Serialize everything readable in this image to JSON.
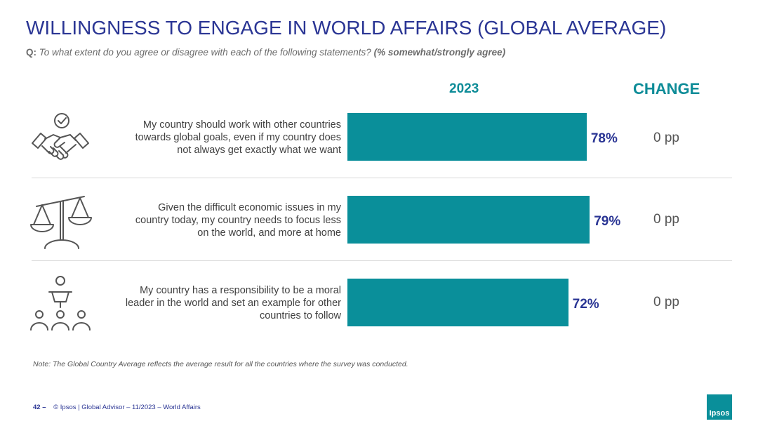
{
  "header": {
    "title": "WILLINGNESS TO ENGAGE IN WORLD AFFAIRS (GLOBAL AVERAGE)",
    "q_prefix": "Q:",
    "q_text": "To what extent do you agree or disagree with each of the following statements?",
    "q_emph": "(% somewhat/strongly agree)"
  },
  "columns": {
    "year": "2023",
    "change": "CHANGE"
  },
  "chart_data": {
    "type": "bar",
    "orientation": "horizontal",
    "categories": [
      "My country should work with other countries towards global goals, even if my country does not always get exactly what we want",
      "Given the difficult economic issues in my country today, my country needs to focus less on the world, and more at home",
      "My country has a responsibility to be a moral leader in the world and set an example for other countries to follow"
    ],
    "series": [
      {
        "name": "2023",
        "values": [
          78,
          79,
          72
        ]
      }
    ],
    "value_labels": [
      "78%",
      "79%",
      "72%"
    ],
    "change_labels": [
      "0 pp",
      "0 pp",
      "0 pp"
    ],
    "bar_color": "#0a8f9a",
    "xlim": [
      0,
      100
    ]
  },
  "rows": [
    {
      "label_lines": [
        "My country should work with other countries",
        "towards global goals, even if my country does",
        "not always get exactly what we want"
      ],
      "icon": "handshake-icon"
    },
    {
      "label_lines": [
        "Given the difficult economic issues in my",
        "country today, my country needs to focus less",
        "on the world, and more at home"
      ],
      "icon": "scales-icon"
    },
    {
      "label_lines": [
        "My country has a responsibility to be a moral",
        "leader in the world and set an example for other",
        "countries to follow"
      ],
      "icon": "leader-podium-icon"
    }
  ],
  "note": "Note: The Global Country Average reflects the average result for all the countries where the survey was conducted.",
  "footer": {
    "page": "42 –",
    "text": "© Ipsos | Global Advisor – 11/2023 – World Affairs"
  },
  "logo_text": "Ipsos",
  "colors": {
    "title": "#2a3594",
    "accent": "#0a8f9a",
    "value": "#2a3594"
  }
}
